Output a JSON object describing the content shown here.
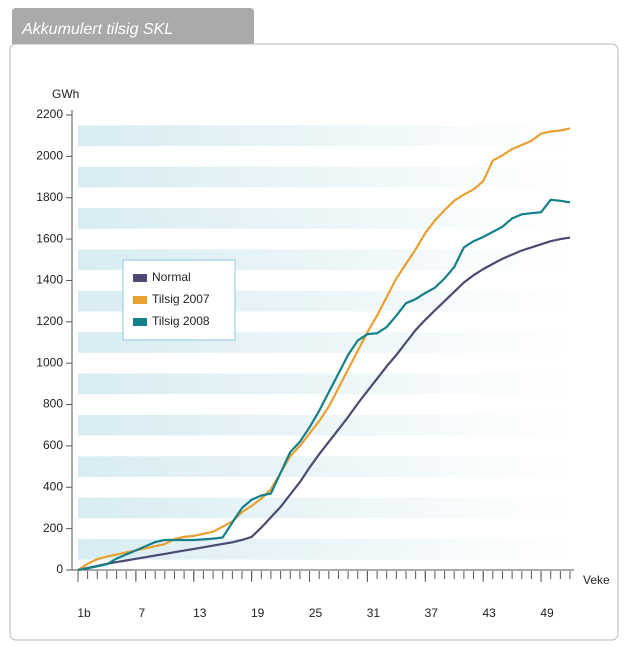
{
  "chart_data": {
    "type": "line",
    "title": "Akkumulert tilsig SKL",
    "y_label": "GWh",
    "x_label": "Veke",
    "x": [
      1,
      2,
      3,
      4,
      5,
      6,
      7,
      8,
      9,
      10,
      11,
      12,
      13,
      14,
      15,
      16,
      17,
      18,
      19,
      20,
      21,
      22,
      23,
      24,
      25,
      26,
      27,
      28,
      29,
      30,
      31,
      32,
      33,
      34,
      35,
      36,
      37,
      38,
      39,
      40,
      41,
      42,
      43,
      44,
      45,
      46,
      47,
      48,
      49,
      50,
      51,
      52
    ],
    "xlim": [
      1,
      52
    ],
    "xticks": [
      {
        "value": 1,
        "label": "1b"
      },
      7,
      13,
      19,
      25,
      31,
      37,
      43,
      49
    ],
    "ylim": [
      0,
      2200
    ],
    "yticks": [
      0,
      200,
      400,
      600,
      800,
      1000,
      1200,
      1400,
      1600,
      1800,
      2000,
      2200
    ],
    "grid": true,
    "series": [
      {
        "name": "Normal",
        "color": "#4a4a72",
        "values": [
          0,
          10,
          20,
          30,
          38,
          46,
          54,
          62,
          70,
          78,
          86,
          94,
          102,
          110,
          118,
          126,
          134,
          145,
          160,
          205,
          255,
          305,
          365,
          425,
          495,
          560,
          620,
          680,
          740,
          805,
          865,
          925,
          985,
          1040,
          1100,
          1160,
          1210,
          1255,
          1300,
          1345,
          1390,
          1425,
          1455,
          1480,
          1505,
          1525,
          1545,
          1560,
          1575,
          1590,
          1600,
          1607
        ]
      },
      {
        "name": "Tilsig 2007",
        "color": "#e8a030",
        "values": [
          0,
          30,
          52,
          65,
          75,
          85,
          95,
          105,
          115,
          125,
          150,
          160,
          165,
          175,
          185,
          210,
          235,
          280,
          310,
          345,
          390,
          470,
          550,
          600,
          660,
          720,
          790,
          880,
          970,
          1060,
          1150,
          1230,
          1320,
          1410,
          1480,
          1550,
          1630,
          1690,
          1740,
          1785,
          1815,
          1840,
          1880,
          1980,
          2005,
          2035,
          2055,
          2075,
          2110,
          2120,
          2125,
          2135
        ]
      },
      {
        "name": "Tilsig 2008",
        "color": "#13808a",
        "values": [
          0,
          8,
          18,
          28,
          55,
          75,
          95,
          115,
          135,
          145,
          145,
          145,
          145,
          148,
          152,
          157,
          230,
          300,
          340,
          360,
          370,
          470,
          570,
          620,
          690,
          770,
          860,
          950,
          1040,
          1110,
          1140,
          1145,
          1175,
          1230,
          1290,
          1310,
          1340,
          1365,
          1410,
          1465,
          1560,
          1590,
          1610,
          1635,
          1660,
          1700,
          1720,
          1725,
          1730,
          1790,
          1785,
          1778
        ]
      }
    ]
  }
}
